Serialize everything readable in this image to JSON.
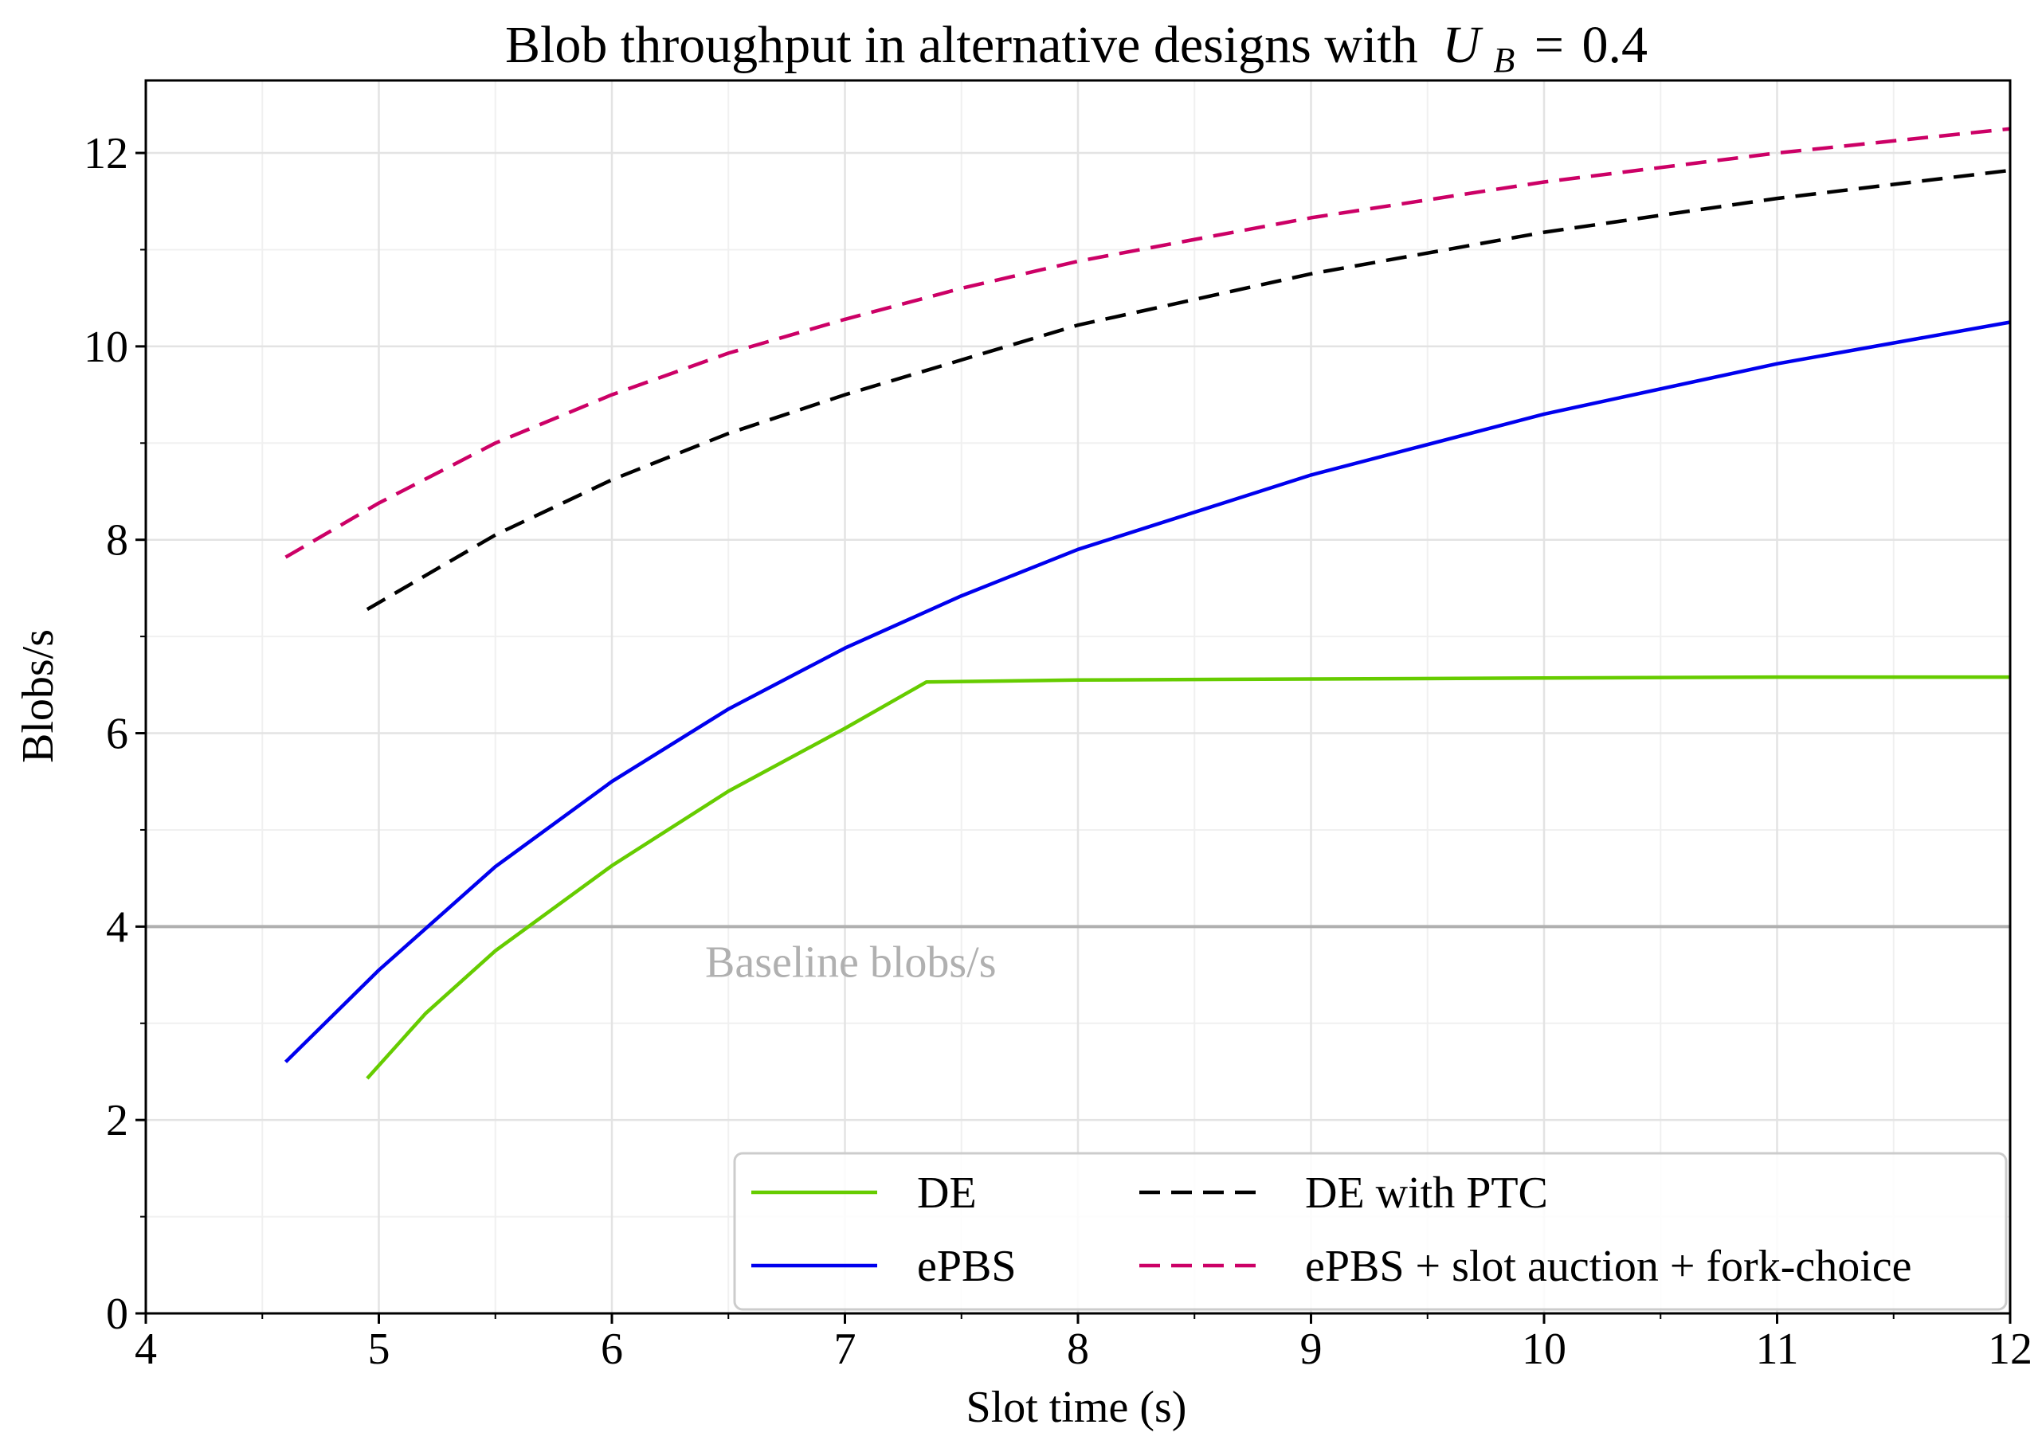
{
  "chart_data": {
    "type": "line",
    "title": "Blob throughput in alternative designs with",
    "title_math": {
      "symbol": "U",
      "subscript": "B",
      "equals": "=",
      "value": "0.4"
    },
    "xlabel": "Slot time (s)",
    "ylabel": "Blobs/s",
    "xlim": [
      4,
      12
    ],
    "ylim": [
      0,
      12.75
    ],
    "xticks": [
      4,
      5,
      6,
      7,
      8,
      9,
      10,
      11,
      12
    ],
    "xtick_labels": [
      "4",
      "5",
      "6",
      "7",
      "8",
      "9",
      "10",
      "11",
      "12"
    ],
    "yticks": [
      0,
      2,
      4,
      6,
      8,
      10,
      12
    ],
    "ytick_labels": [
      "0",
      "2",
      "4",
      "6",
      "8",
      "10",
      "12"
    ],
    "grid": true,
    "legend_position": "bottom-right",
    "baseline": {
      "y": 4,
      "label": "Baseline blobs/s",
      "color": "#b0b0b0"
    },
    "series": [
      {
        "name": "DE",
        "color": "#66cc00",
        "style": "solid",
        "x": [
          4.95,
          5.2,
          5.5,
          6.0,
          6.5,
          7.0,
          7.35,
          8.0,
          9.0,
          10.0,
          11.0,
          12.0
        ],
        "y": [
          2.43,
          3.1,
          3.75,
          4.63,
          5.4,
          6.05,
          6.53,
          6.55,
          6.56,
          6.57,
          6.58,
          6.58
        ]
      },
      {
        "name": "ePBS",
        "color": "#0000ee",
        "style": "solid",
        "x": [
          4.6,
          5.0,
          5.5,
          6.0,
          6.5,
          7.0,
          7.5,
          8.0,
          9.0,
          10.0,
          11.0,
          12.0
        ],
        "y": [
          2.6,
          3.55,
          4.62,
          5.5,
          6.25,
          6.88,
          7.42,
          7.9,
          8.67,
          9.3,
          9.82,
          10.25
        ]
      },
      {
        "name": "DE with PTC",
        "color": "#000000",
        "style": "dashed",
        "x": [
          4.95,
          5.5,
          6.0,
          6.5,
          7.0,
          7.5,
          8.0,
          9.0,
          10.0,
          11.0,
          12.0
        ],
        "y": [
          7.28,
          8.05,
          8.62,
          9.1,
          9.5,
          9.86,
          10.22,
          10.75,
          11.18,
          11.53,
          11.82
        ]
      },
      {
        "name": "ePBS + slot auction + fork-choice",
        "color": "#cc0066",
        "style": "dashed",
        "x": [
          4.6,
          5.0,
          5.5,
          6.0,
          6.5,
          7.0,
          7.5,
          8.0,
          9.0,
          10.0,
          11.0,
          12.0
        ],
        "y": [
          7.82,
          8.38,
          9.0,
          9.5,
          9.93,
          10.28,
          10.6,
          10.88,
          11.33,
          11.7,
          12.0,
          12.25
        ]
      }
    ]
  }
}
